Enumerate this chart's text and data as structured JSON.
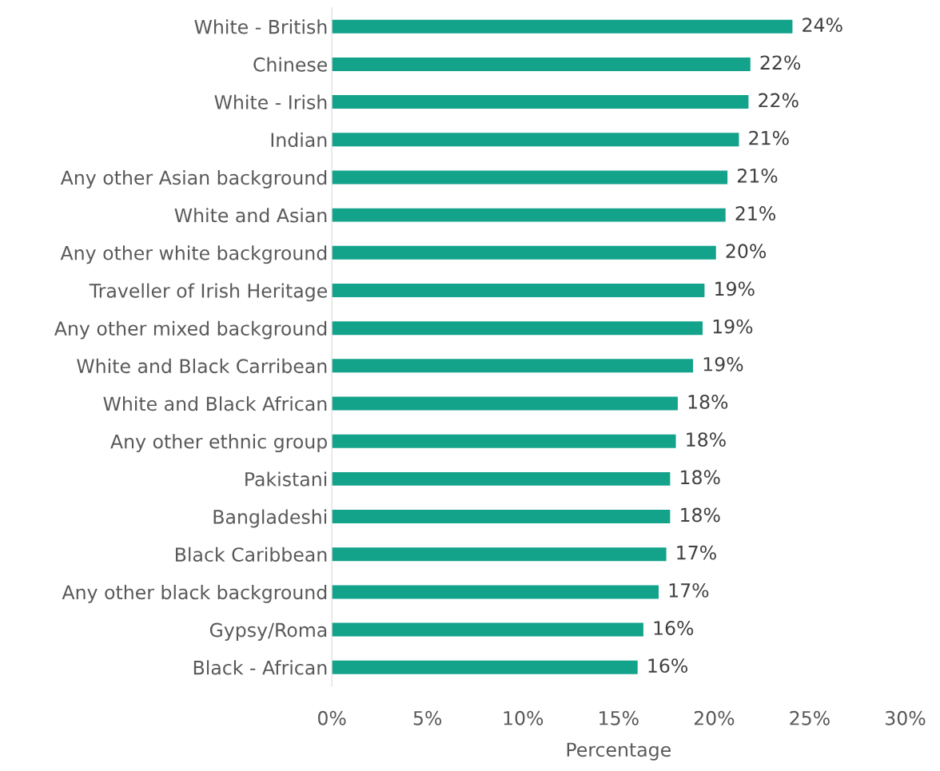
{
  "chart_data": {
    "type": "bar",
    "orientation": "horizontal",
    "xlabel": "Percentage",
    "categories": [
      "White - British",
      "Chinese",
      "White - Irish",
      "Indian",
      "Any other Asian background",
      "White and Asian",
      "Any other white background",
      "Traveller of Irish Heritage",
      "Any other mixed background",
      "White and Black Carribean",
      "White and Black African",
      "Any other ethnic group",
      "Pakistani",
      "Bangladeshi",
      "Black Caribbean",
      "Any other black background",
      "Gypsy/Roma",
      "Black - African"
    ],
    "values": [
      24.1,
      21.9,
      21.8,
      21.3,
      20.7,
      20.6,
      20.1,
      19.5,
      19.4,
      18.9,
      18.1,
      18.0,
      17.7,
      17.7,
      17.5,
      17.1,
      16.3,
      16.0
    ],
    "value_labels": [
      "24%",
      "22%",
      "22%",
      "21%",
      "21%",
      "21%",
      "20%",
      "19%",
      "19%",
      "19%",
      "18%",
      "18%",
      "18%",
      "18%",
      "17%",
      "17%",
      "16%",
      "16%"
    ],
    "color": "#13a38b",
    "xlim": [
      0,
      30
    ],
    "xticks": [
      {
        "value": 0,
        "label": "0%"
      },
      {
        "value": 5,
        "label": "5%"
      },
      {
        "value": 10,
        "label": "10%"
      },
      {
        "value": 15,
        "label": "15%"
      },
      {
        "value": 20,
        "label": "20%"
      },
      {
        "value": 25,
        "label": "25%"
      },
      {
        "value": 30,
        "label": "30%"
      }
    ],
    "grid": false
  }
}
